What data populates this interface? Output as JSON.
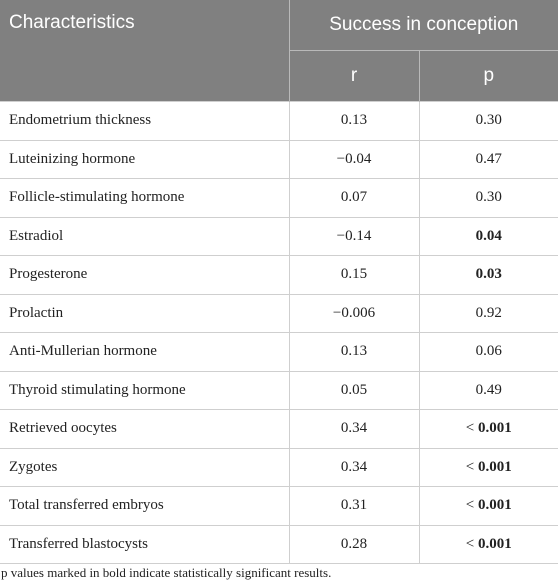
{
  "header": {
    "col1": "Characteristics",
    "group": "Success in conception",
    "sub_r": "r",
    "sub_p": "p"
  },
  "rows": [
    {
      "label": "Endometrium thickness",
      "r": "0.13",
      "p": "0.30",
      "p_prefix": "",
      "bold": false
    },
    {
      "label": "Luteinizing hormone",
      "r": "−0.04",
      "p": "0.47",
      "p_prefix": "",
      "bold": false
    },
    {
      "label": "Follicle-stimulating hormone",
      "r": "0.07",
      "p": "0.30",
      "p_prefix": "",
      "bold": false
    },
    {
      "label": "Estradiol",
      "r": "−0.14",
      "p": "0.04",
      "p_prefix": "",
      "bold": true
    },
    {
      "label": "Progesterone",
      "r": "0.15",
      "p": "0.03",
      "p_prefix": "",
      "bold": true
    },
    {
      "label": "Prolactin",
      "r": "−0.006",
      "p": "0.92",
      "p_prefix": "",
      "bold": false
    },
    {
      "label": "Anti-Mullerian hormone",
      "r": "0.13",
      "p": "0.06",
      "p_prefix": "",
      "bold": false
    },
    {
      "label": "Thyroid stimulating hormone",
      "r": "0.05",
      "p": "0.49",
      "p_prefix": "",
      "bold": false
    },
    {
      "label": "Retrieved oocytes",
      "r": "0.34",
      "p": "0.001",
      "p_prefix": "< ",
      "bold": true
    },
    {
      "label": "Zygotes",
      "r": "0.34",
      "p": "0.001",
      "p_prefix": "< ",
      "bold": true
    },
    {
      "label": "Total transferred embryos",
      "r": "0.31",
      "p": "0.001",
      "p_prefix": "< ",
      "bold": true
    },
    {
      "label": "Transferred blastocysts",
      "r": "0.28",
      "p": "0.001",
      "p_prefix": "< ",
      "bold": true
    }
  ],
  "footnote": "p values marked in bold indicate statistically significant results."
}
